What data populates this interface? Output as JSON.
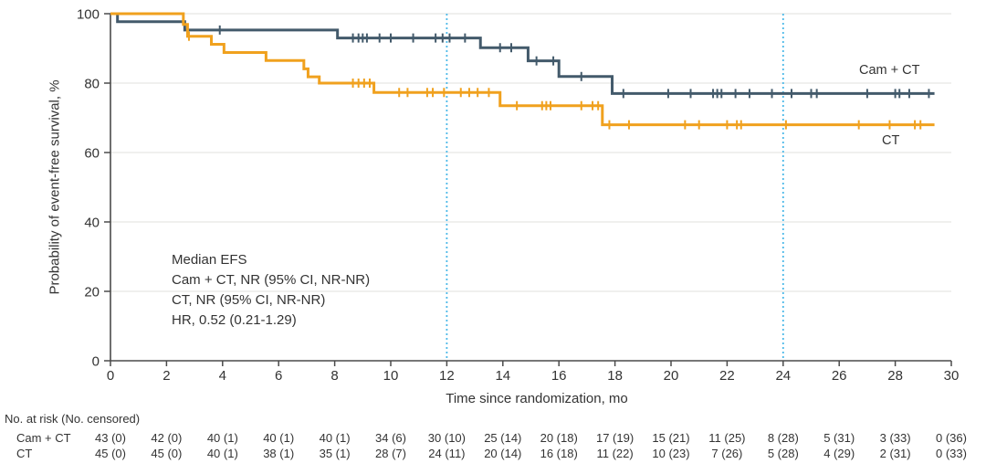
{
  "chart_data": {
    "type": "line",
    "subtype": "kaplan-meier-step-curves",
    "title": "",
    "xlabel": "Time since randomization, mo",
    "ylabel": "Probability of event-free survival, %",
    "xlim": [
      0,
      30
    ],
    "ylim": [
      0,
      100
    ],
    "xticks": [
      0,
      2,
      4,
      6,
      8,
      10,
      12,
      14,
      16,
      18,
      20,
      22,
      24,
      26,
      28,
      30
    ],
    "yticks": [
      0,
      20,
      40,
      60,
      80,
      100
    ],
    "grid": "horizontal",
    "grid_color": "#ebebe9",
    "axis_color": "#4a4a4a",
    "text_color": "#333333",
    "reference_lines_x": [
      12,
      24
    ],
    "reference_line_color": "#4db9e8",
    "annotation": {
      "lines": [
        "Median EFS",
        "Cam + CT, NR (95% CI, NR-NR)",
        "CT, NR (95% CI, NR-NR)",
        "HR, 0.52 (0.21-1.29)"
      ]
    },
    "series": [
      {
        "name": "Cam + CT",
        "color": "#435a6b",
        "steps": [
          [
            0,
            100
          ],
          [
            0.25,
            97.7
          ],
          [
            2.65,
            95.3
          ],
          [
            8.1,
            93.0
          ],
          [
            13.2,
            90.2
          ],
          [
            14.9,
            86.4
          ],
          [
            16.0,
            81.9
          ],
          [
            17.9,
            77.0
          ]
        ],
        "end_x": 29.4,
        "censors": [
          [
            3.9,
            95.3
          ],
          [
            8.65,
            93.0
          ],
          [
            8.85,
            93.0
          ],
          [
            9.0,
            93.0
          ],
          [
            9.15,
            93.0
          ],
          [
            9.6,
            93.0
          ],
          [
            10.0,
            93.0
          ],
          [
            10.8,
            93.0
          ],
          [
            11.6,
            93.0
          ],
          [
            11.85,
            93.0
          ],
          [
            12.1,
            93.0
          ],
          [
            12.65,
            93.0
          ],
          [
            13.9,
            90.2
          ],
          [
            14.3,
            90.2
          ],
          [
            15.2,
            86.4
          ],
          [
            15.8,
            86.4
          ],
          [
            16.8,
            81.9
          ],
          [
            18.3,
            77.0
          ],
          [
            19.9,
            77.0
          ],
          [
            20.7,
            77.0
          ],
          [
            21.5,
            77.0
          ],
          [
            21.65,
            77.0
          ],
          [
            21.8,
            77.0
          ],
          [
            22.3,
            77.0
          ],
          [
            22.8,
            77.0
          ],
          [
            23.6,
            77.0
          ],
          [
            24.3,
            77.0
          ],
          [
            25.0,
            77.0
          ],
          [
            25.2,
            77.0
          ],
          [
            27.0,
            77.0
          ],
          [
            28.0,
            77.0
          ],
          [
            28.15,
            77.0
          ],
          [
            28.5,
            77.0
          ],
          [
            29.2,
            77.0
          ]
        ]
      },
      {
        "name": "CT",
        "color": "#f0a11e",
        "steps": [
          [
            0,
            100
          ],
          [
            2.6,
            96.9
          ],
          [
            2.75,
            93.5
          ],
          [
            3.6,
            91.2
          ],
          [
            4.05,
            88.8
          ],
          [
            5.55,
            86.5
          ],
          [
            6.9,
            84.1
          ],
          [
            7.05,
            81.8
          ],
          [
            7.45,
            80.0
          ],
          [
            9.4,
            77.3
          ],
          [
            13.9,
            73.5
          ],
          [
            17.55,
            68.0
          ]
        ],
        "end_x": 29.4,
        "censors": [
          [
            2.8,
            93.5
          ],
          [
            8.65,
            80.0
          ],
          [
            8.85,
            80.0
          ],
          [
            9.05,
            80.0
          ],
          [
            9.25,
            80.0
          ],
          [
            10.3,
            77.3
          ],
          [
            10.6,
            77.3
          ],
          [
            11.3,
            77.3
          ],
          [
            11.5,
            77.3
          ],
          [
            11.9,
            77.3
          ],
          [
            12.5,
            77.3
          ],
          [
            12.8,
            77.3
          ],
          [
            13.1,
            77.3
          ],
          [
            13.5,
            77.3
          ],
          [
            14.5,
            73.5
          ],
          [
            15.4,
            73.5
          ],
          [
            15.55,
            73.5
          ],
          [
            15.7,
            73.5
          ],
          [
            16.8,
            73.5
          ],
          [
            17.2,
            73.5
          ],
          [
            17.4,
            73.5
          ],
          [
            17.8,
            68.0
          ],
          [
            18.5,
            68.0
          ],
          [
            20.5,
            68.0
          ],
          [
            21.0,
            68.0
          ],
          [
            22.0,
            68.0
          ],
          [
            22.35,
            68.0
          ],
          [
            22.5,
            68.0
          ],
          [
            24.1,
            68.0
          ],
          [
            26.7,
            68.0
          ],
          [
            27.8,
            68.0
          ],
          [
            28.7,
            68.0
          ],
          [
            28.9,
            68.0
          ]
        ]
      }
    ]
  },
  "risk_table": {
    "header": "No. at risk (No. censored)",
    "times": [
      0,
      2,
      4,
      6,
      8,
      10,
      12,
      14,
      16,
      18,
      20,
      22,
      24,
      26,
      28,
      30
    ],
    "rows": [
      {
        "label": "Cam + CT",
        "values": [
          "43 (0)",
          "42 (0)",
          "40 (1)",
          "40 (1)",
          "40 (1)",
          "34 (6)",
          "30 (10)",
          "25 (14)",
          "20 (18)",
          "17 (19)",
          "15 (21)",
          "11 (25)",
          "8 (28)",
          "5 (31)",
          "3 (33)",
          "0 (36)"
        ]
      },
      {
        "label": "CT",
        "values": [
          "45 (0)",
          "45 (0)",
          "40 (1)",
          "38 (1)",
          "35 (1)",
          "28 (7)",
          "24 (11)",
          "20 (14)",
          "16 (18)",
          "11 (22)",
          "10 (23)",
          "7 (26)",
          "5 (28)",
          "4 (29)",
          "2 (31)",
          "0 (33)"
        ]
      }
    ]
  }
}
